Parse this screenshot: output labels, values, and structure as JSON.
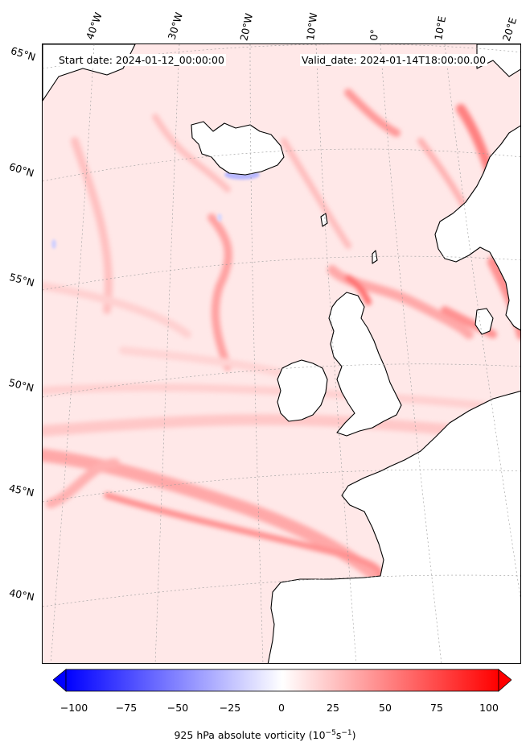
{
  "header": {
    "start_date": "Start date: 2024-01-12_00:00:00",
    "valid_date": "Valid_date: 2024-01-14T18:00:00.00"
  },
  "lon_labels": [
    "40°W",
    "30°W",
    "20°W",
    "10°W",
    "0°",
    "10°E",
    "20°E"
  ],
  "lat_labels": [
    "65°N",
    "60°N",
    "55°N",
    "50°N",
    "45°N",
    "40°N"
  ],
  "colorbar": {
    "min": -100,
    "max": 100,
    "ticks": [
      "−100",
      "−75",
      "−50",
      "−25",
      "0",
      "25",
      "50",
      "75",
      "100"
    ],
    "label": "925 hPa absolute vorticity (10",
    "label_exp1": "−5",
    "label_mid": "s",
    "label_exp2": "−1",
    "label_end": ")",
    "colors": {
      "low": "#0000ff",
      "mid": "#ffffff",
      "high": "#ff0000"
    }
  },
  "map": {
    "background_color": "#ffe8e8",
    "land_color": "#ffffff",
    "coast_color": "#000000"
  }
}
